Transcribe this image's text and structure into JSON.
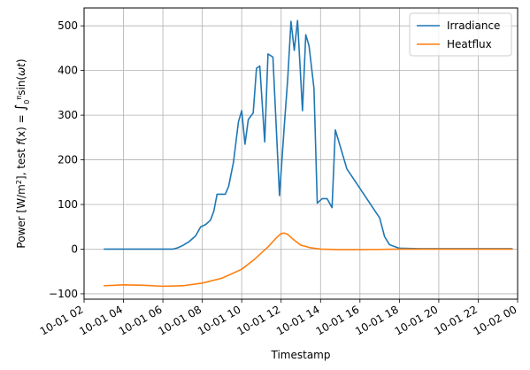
{
  "chart_data": {
    "type": "line",
    "title": "",
    "xlabel": "Timestamp",
    "ylabel": "Power [W/m²], test f(x) = ∫₀^π sin(ωt)",
    "ylabel_parts": {
      "pre": "Power [W/m",
      "sup": "2",
      "mid": "], test ",
      "fx": "f",
      "fx_arg": "(x) = ",
      "integral": "∫",
      "lower": "0",
      "upper": "π",
      "post_a": "sin(",
      "omega": "ω",
      "t": "t",
      "post_b": ")"
    },
    "xlim": [
      "10-01 02",
      "10-02 00"
    ],
    "ylim": [
      -112,
      540
    ],
    "x_ticks": [
      "10-01 02",
      "10-01 04",
      "10-01 06",
      "10-01 08",
      "10-01 10",
      "10-01 12",
      "10-01 14",
      "10-01 16",
      "10-01 18",
      "10-01 20",
      "10-01 22",
      "10-02 00"
    ],
    "y_ticks": [
      -100,
      0,
      100,
      200,
      300,
      400,
      500
    ],
    "grid": true,
    "legend": "top-right",
    "series": [
      {
        "name": "Irradiance",
        "color": "#1f77b4",
        "points": [
          [
            "10-01 03:00",
            0
          ],
          [
            "10-01 04:00",
            0
          ],
          [
            "10-01 05:00",
            0
          ],
          [
            "10-01 06:00",
            0
          ],
          [
            "10-01 06:30",
            0
          ],
          [
            "10-01 06:45",
            3
          ],
          [
            "10-01 07:00",
            8
          ],
          [
            "10-01 07:20",
            17
          ],
          [
            "10-01 07:40",
            30
          ],
          [
            "10-01 07:55",
            50
          ],
          [
            "10-01 08:10",
            55
          ],
          [
            "10-01 08:25",
            65
          ],
          [
            "10-01 08:35",
            85
          ],
          [
            "10-01 08:45",
            123
          ],
          [
            "10-01 09:00",
            123
          ],
          [
            "10-01 09:10",
            123
          ],
          [
            "10-01 09:20",
            140
          ],
          [
            "10-01 09:35",
            195
          ],
          [
            "10-01 09:50",
            285
          ],
          [
            "10-01 10:00",
            310
          ],
          [
            "10-01 10:10",
            235
          ],
          [
            "10-01 10:20",
            290
          ],
          [
            "10-01 10:35",
            305
          ],
          [
            "10-01 10:45",
            405
          ],
          [
            "10-01 10:55",
            410
          ],
          [
            "10-01 11:10",
            240
          ],
          [
            "10-01 11:20",
            437
          ],
          [
            "10-01 11:35",
            430
          ],
          [
            "10-01 11:55",
            120
          ],
          [
            "10-01 12:10",
            280
          ],
          [
            "10-01 12:20",
            380
          ],
          [
            "10-01 12:30",
            510
          ],
          [
            "10-01 12:40",
            445
          ],
          [
            "10-01 12:50",
            512
          ],
          [
            "10-01 13:05",
            310
          ],
          [
            "10-01 13:15",
            480
          ],
          [
            "10-01 13:25",
            455
          ],
          [
            "10-01 13:40",
            360
          ],
          [
            "10-01 13:50",
            103
          ],
          [
            "10-01 14:05",
            113
          ],
          [
            "10-01 14:20",
            113
          ],
          [
            "10-01 14:35",
            93
          ],
          [
            "10-01 14:45",
            267
          ],
          [
            "10-01 15:00",
            230
          ],
          [
            "10-01 15:20",
            180
          ],
          [
            "10-01 17:00",
            70
          ],
          [
            "10-01 17:15",
            28
          ],
          [
            "10-01 17:30",
            10
          ],
          [
            "10-01 18:00",
            2
          ],
          [
            "10-01 19:00",
            1
          ],
          [
            "10-01 20:00",
            1
          ],
          [
            "10-01 21:00",
            1
          ],
          [
            "10-01 22:00",
            1
          ],
          [
            "10-01 23:00",
            1
          ],
          [
            "10-01 23:45",
            1
          ]
        ]
      },
      {
        "name": "Heatflux",
        "color": "#ff7f0e",
        "points": [
          [
            "10-01 03:00",
            -82
          ],
          [
            "10-01 04:00",
            -80
          ],
          [
            "10-01 05:00",
            -81
          ],
          [
            "10-01 06:00",
            -83
          ],
          [
            "10-01 07:00",
            -82
          ],
          [
            "10-01 08:00",
            -76
          ],
          [
            "10-01 09:00",
            -65
          ],
          [
            "10-01 10:00",
            -45
          ],
          [
            "10-01 10:40",
            -22
          ],
          [
            "10-01 11:20",
            5
          ],
          [
            "10-01 11:45",
            25
          ],
          [
            "10-01 12:00",
            35
          ],
          [
            "10-01 12:10",
            36
          ],
          [
            "10-01 12:20",
            33
          ],
          [
            "10-01 12:40",
            20
          ],
          [
            "10-01 13:00",
            9
          ],
          [
            "10-01 13:30",
            3
          ],
          [
            "10-01 14:00",
            0
          ],
          [
            "10-01 15:00",
            -1
          ],
          [
            "10-01 16:00",
            -1
          ],
          [
            "10-01 17:00",
            -0.5
          ],
          [
            "10-01 18:00",
            0
          ],
          [
            "10-01 19:00",
            0
          ],
          [
            "10-01 20:00",
            0
          ],
          [
            "10-01 21:00",
            0
          ],
          [
            "10-01 22:00",
            0
          ],
          [
            "10-01 23:00",
            0
          ],
          [
            "10-01 23:45",
            0
          ]
        ]
      }
    ]
  }
}
